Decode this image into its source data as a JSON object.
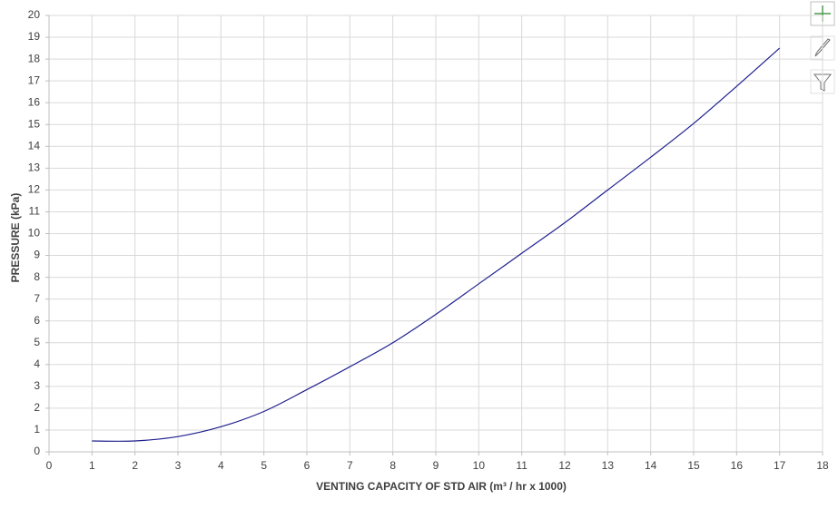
{
  "chart_data": {
    "type": "line",
    "x_label": "VENTING CAPACITY OF STD AIR (m³ / hr x 1000)",
    "y_label": "PRESSURE (kPa)",
    "x": [
      1,
      2,
      3,
      4,
      5,
      6,
      7,
      8,
      9,
      10,
      11,
      12,
      13,
      14,
      15,
      16,
      17
    ],
    "values": [
      0.5,
      0.5,
      0.7,
      1.15,
      1.85,
      2.85,
      3.9,
      5.0,
      6.3,
      7.7,
      9.1,
      10.5,
      12.0,
      13.5,
      15.05,
      16.75,
      18.5
    ],
    "color": "#1f1f8f",
    "xlim": [
      0,
      18
    ],
    "xticks": [
      0,
      1,
      2,
      3,
      4,
      5,
      6,
      7,
      8,
      9,
      10,
      11,
      12,
      13,
      14,
      15,
      16,
      17,
      18
    ],
    "ylim": [
      0,
      20
    ],
    "yticks": [
      0,
      1,
      2,
      3,
      4,
      5,
      6,
      7,
      8,
      9,
      10,
      11,
      12,
      13,
      14,
      15,
      16,
      17,
      18,
      19,
      20
    ],
    "grid": true
  }
}
